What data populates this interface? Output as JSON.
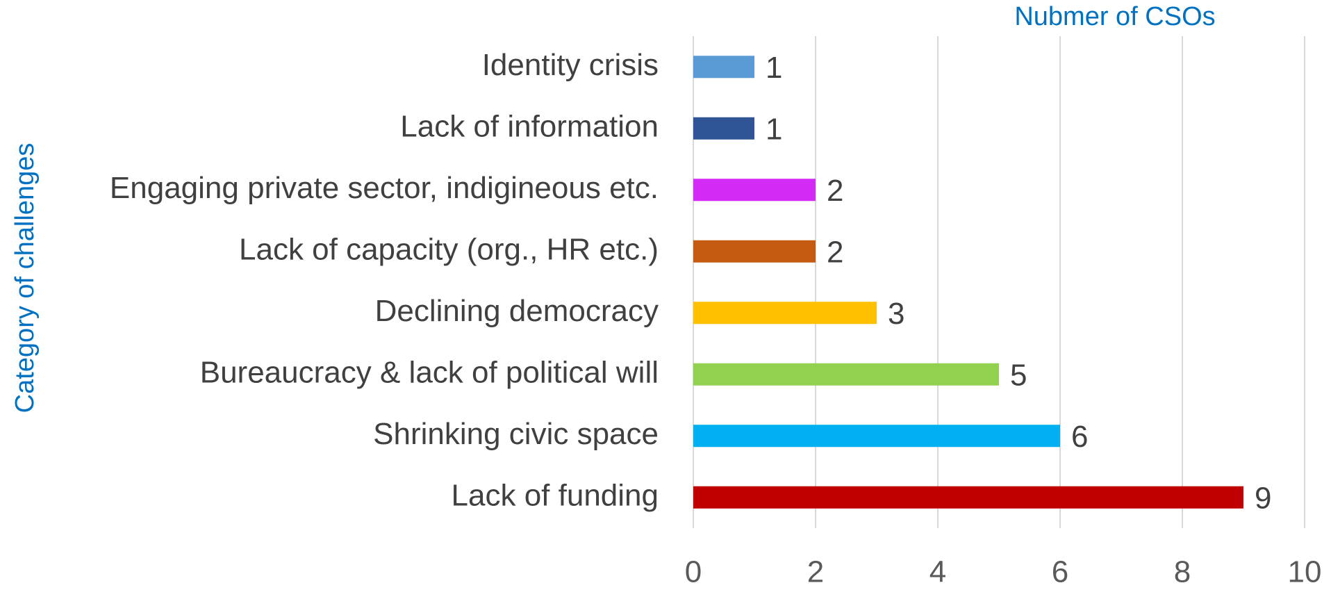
{
  "chart_data": {
    "type": "barh",
    "x_label": "Nubmer of CSOs",
    "y_label": "Category of challenges",
    "categories": [
      "Identity crisis",
      "Lack of information",
      "Engaging private sector, indigineous etc.",
      "Lack of capacity (org., HR etc.)",
      "Declining democracy",
      "Bureaucracy & lack of political will",
      "Shrinking civic space",
      "Lack of funding"
    ],
    "values": [
      1,
      1,
      2,
      2,
      3,
      5,
      6,
      9
    ],
    "colors": [
      "#5b9bd5",
      "#2f5597",
      "#d42af5",
      "#c55a11",
      "#ffc000",
      "#92d050",
      "#00b0f0",
      "#c00000"
    ],
    "xlim": [
      0,
      10
    ],
    "xticks": [
      0,
      2,
      4,
      6,
      8,
      10
    ],
    "grid": true
  }
}
